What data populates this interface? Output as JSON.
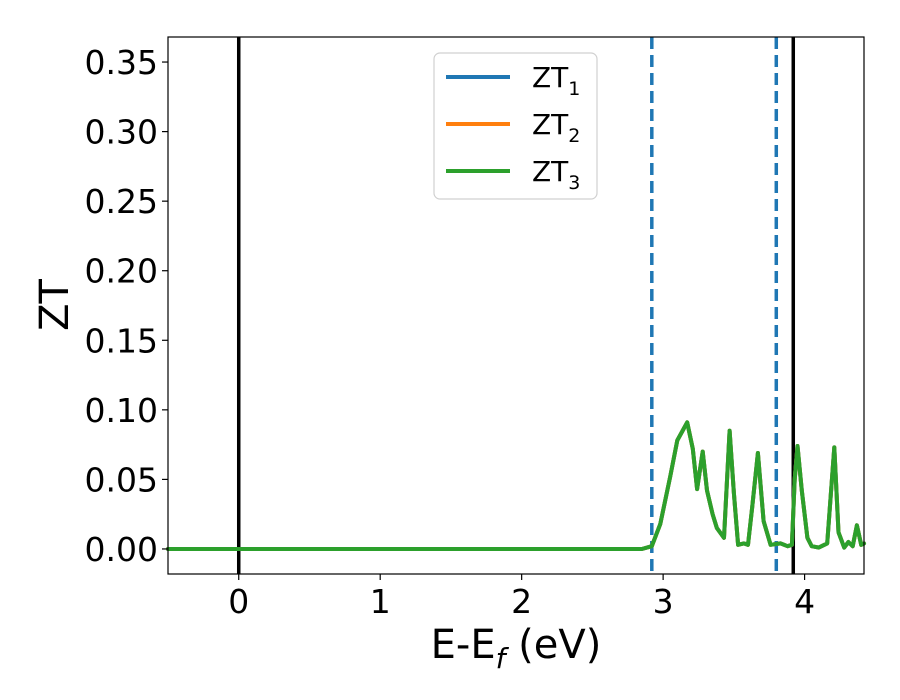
{
  "chart_data": {
    "type": "line",
    "xlabel": "E-E",
    "xlabel_subscript": "f",
    "xlabel_unit": " (eV)",
    "ylabel": "ZT",
    "xlim": [
      -0.5,
      4.42
    ],
    "ylim": [
      -0.018,
      0.368
    ],
    "x_ticks": [
      0,
      1,
      2,
      3,
      4
    ],
    "x_tick_labels": [
      "0",
      "1",
      "2",
      "3",
      "4"
    ],
    "y_ticks": [
      0.0,
      0.05,
      0.1,
      0.15,
      0.2,
      0.25,
      0.3,
      0.35
    ],
    "y_tick_labels": [
      "0.00",
      "0.05",
      "0.10",
      "0.15",
      "0.20",
      "0.25",
      "0.30",
      "0.35"
    ],
    "grid": false,
    "legend_position": "top-center",
    "series": [
      {
        "name": "ZT",
        "subscript": "1",
        "color": "#1f77b4"
      },
      {
        "name": "ZT",
        "subscript": "2",
        "color": "#ff7f0e"
      },
      {
        "name": "ZT",
        "subscript": "3",
        "color": "#2ca02c"
      }
    ],
    "curve": {
      "x": [
        -0.5,
        2.85,
        2.92,
        2.98,
        3.05,
        3.1,
        3.17,
        3.21,
        3.24,
        3.28,
        3.31,
        3.35,
        3.38,
        3.43,
        3.47,
        3.5,
        3.53,
        3.57,
        3.6,
        3.63,
        3.67,
        3.71,
        3.76,
        3.83,
        3.88,
        3.91,
        3.93,
        3.95,
        3.98,
        4.02,
        4.05,
        4.1,
        4.16,
        4.21,
        4.24,
        4.28,
        4.31,
        4.34,
        4.37,
        4.4,
        4.42
      ],
      "y": [
        0.0,
        0.0,
        0.002,
        0.018,
        0.052,
        0.078,
        0.091,
        0.072,
        0.043,
        0.07,
        0.042,
        0.025,
        0.015,
        0.008,
        0.085,
        0.04,
        0.003,
        0.004,
        0.003,
        0.03,
        0.069,
        0.02,
        0.003,
        0.004,
        0.002,
        0.003,
        0.05,
        0.074,
        0.042,
        0.008,
        0.002,
        0.001,
        0.004,
        0.073,
        0.012,
        0.001,
        0.005,
        0.002,
        0.017,
        0.003,
        0.004
      ]
    },
    "vlines": [
      {
        "x": 0.0,
        "style": "solid",
        "color": "#000000"
      },
      {
        "x": 2.92,
        "style": "dashed",
        "color": "#1f77b4"
      },
      {
        "x": 3.8,
        "style": "dashed",
        "color": "#1f77b4"
      },
      {
        "x": 3.92,
        "style": "solid",
        "color": "#000000"
      }
    ]
  }
}
